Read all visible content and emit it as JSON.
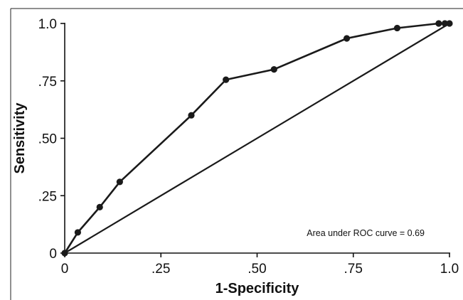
{
  "chart_data": {
    "type": "line",
    "title": "",
    "xlabel": "1-Specificity",
    "ylabel": "Sensitivity",
    "xlim": [
      0,
      1
    ],
    "ylim": [
      0,
      1
    ],
    "grid": false,
    "x_ticks": [
      {
        "value": 0,
        "label": "0"
      },
      {
        "value": 0.25,
        "label": ".25"
      },
      {
        "value": 0.5,
        "label": ".50"
      },
      {
        "value": 0.75,
        "label": ".75"
      },
      {
        "value": 1,
        "label": "1.0"
      }
    ],
    "y_ticks": [
      {
        "value": 0,
        "label": "0"
      },
      {
        "value": 0.25,
        "label": ".25"
      },
      {
        "value": 0.5,
        "label": ".50"
      },
      {
        "value": 0.75,
        "label": ".75"
      },
      {
        "value": 1,
        "label": "1.0"
      }
    ],
    "series": [
      {
        "x": [
          0,
          0.034,
          0.091,
          0.143,
          0.329,
          0.419,
          0.544,
          0.733,
          0.864,
          0.972,
          0.988,
          1.0
        ],
        "y": [
          0,
          0.09,
          0.2,
          0.31,
          0.6,
          0.755,
          0.8,
          0.935,
          0.98,
          1.0,
          1.0,
          1.0
        ],
        "markers": true,
        "color": "#1a1a1a"
      }
    ],
    "reference_line": {
      "x": [
        0,
        1
      ],
      "y": [
        0,
        1
      ],
      "color": "#1a1a1a"
    },
    "annotation": "Area under ROC curve = 0.69"
  }
}
